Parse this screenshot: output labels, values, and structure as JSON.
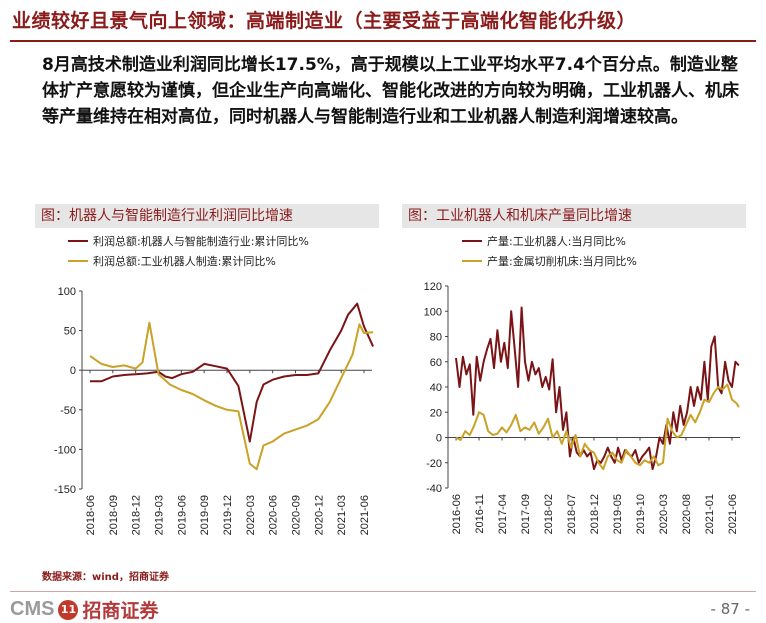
{
  "header": {
    "title": "业绩较好且景气向上领域：高端制造业（主要受益于高端化智能化升级）"
  },
  "body_text": "8月高技术制造业利润同比增长17.5%，高于规模以上工业平均水平7.4个百分点。制造业整体扩产意愿较为谨慎，但企业生产向高端化、智能化改进的方向较为明确，工业机器人、机床等产量维持在相对高位，同时机器人与智能制造行业和工业机器人制造利润增速较高。",
  "footer": {
    "source": "数据来源：wind，招商证券",
    "logo_text": "CMS",
    "logo_badge": "11",
    "logo_cn": "招商证券",
    "page": "- 87 -"
  },
  "colors": {
    "brand": "#8b1a1a",
    "series_dark": "#7b1416",
    "series_gold": "#c9a227"
  },
  "chart_data": [
    {
      "type": "line",
      "title": "图：机器人与智能制造行业利润同比增速",
      "x_ticks": [
        "2018-06",
        "2018-09",
        "2018-12",
        "2019-03",
        "2019-06",
        "2019-09",
        "2019-12",
        "2020-03",
        "2020-06",
        "2020-09",
        "2020-12",
        "2021-03",
        "2021-06"
      ],
      "ylim": [
        -150,
        100
      ],
      "y_ticks": [
        100,
        50,
        0,
        -50,
        -100,
        -150
      ],
      "series": [
        {
          "name": "利润总额:机器人与智能制造行业:累计同比%",
          "color": "#7b1416",
          "x": [
            0,
            0.5,
            1,
            1.5,
            2,
            2.5,
            3,
            3.3,
            3.6,
            4,
            4.5,
            5,
            5.5,
            6,
            6.5,
            7,
            7.3,
            7.6,
            8,
            8.5,
            9,
            9.5,
            10,
            10.5,
            11,
            11.3,
            11.7,
            12,
            12.4
          ],
          "y": [
            -14,
            -14,
            -8,
            -6,
            -5,
            -4,
            -2,
            -8,
            -10,
            -5,
            -2,
            8,
            5,
            2,
            -20,
            -90,
            -40,
            -18,
            -12,
            -8,
            -6,
            -6,
            -4,
            25,
            50,
            70,
            84,
            55,
            30
          ]
        },
        {
          "name": "利润总额:工业机器人制造:累计同比%",
          "color": "#c9a227",
          "x": [
            0,
            0.5,
            1,
            1.5,
            2,
            2.3,
            2.6,
            3,
            3.5,
            4,
            4.5,
            5,
            5.5,
            6,
            6.5,
            7,
            7.3,
            7.6,
            8,
            8.5,
            9,
            9.5,
            10,
            10.5,
            11,
            11.5,
            11.8,
            12,
            12.4
          ],
          "y": [
            18,
            8,
            4,
            6,
            2,
            10,
            60,
            -5,
            -18,
            -25,
            -30,
            -38,
            -45,
            -50,
            -52,
            -118,
            -125,
            -95,
            -90,
            -80,
            -75,
            -70,
            -62,
            -40,
            -10,
            20,
            58,
            47,
            48
          ]
        }
      ]
    },
    {
      "type": "line",
      "title": "图：工业机器人和机床产量同比增速",
      "x_ticks": [
        "2016-06",
        "2016-11",
        "2017-04",
        "2017-09",
        "2018-02",
        "2018-07",
        "2018-12",
        "2019-05",
        "2019-10",
        "2020-03",
        "2020-08",
        "2021-01",
        "2021-06"
      ],
      "ylim": [
        -40,
        120
      ],
      "y_ticks": [
        120,
        100,
        80,
        60,
        40,
        20,
        0,
        -20,
        -40
      ],
      "series": [
        {
          "name": "产量:工业机器人:当月同比%",
          "color": "#7b1416",
          "x": [
            0,
            0.15,
            0.3,
            0.45,
            0.6,
            0.75,
            0.9,
            1.05,
            1.2,
            1.35,
            1.5,
            1.65,
            1.8,
            1.95,
            2.1,
            2.25,
            2.4,
            2.55,
            2.7,
            2.85,
            3,
            3.15,
            3.3,
            3.45,
            3.6,
            3.75,
            3.9,
            4.05,
            4.2,
            4.35,
            4.5,
            4.65,
            4.8,
            4.95,
            5.1,
            5.25,
            5.4,
            5.55,
            5.7,
            5.85,
            6,
            6.15,
            6.3,
            6.45,
            6.6,
            6.75,
            6.9,
            7.05,
            7.2,
            7.35,
            7.5,
            7.65,
            7.8,
            7.95,
            8.1,
            8.25,
            8.4,
            8.55,
            8.7,
            8.85,
            9,
            9.15,
            9.3,
            9.45,
            9.6,
            9.75,
            9.9,
            10.05,
            10.2,
            10.35,
            10.5,
            10.65,
            10.8,
            10.95,
            11.1,
            11.25,
            11.4,
            11.55,
            11.7,
            11.85,
            12,
            12.15,
            12.3
          ],
          "y": [
            63,
            40,
            64,
            50,
            58,
            18,
            64,
            45,
            60,
            70,
            78,
            55,
            85,
            60,
            75,
            55,
            100,
            70,
            40,
            103,
            60,
            45,
            60,
            50,
            55,
            40,
            48,
            38,
            62,
            20,
            40,
            6,
            20,
            -15,
            0,
            -12,
            -15,
            -10,
            -15,
            -12,
            -25,
            -18,
            -20,
            -15,
            -8,
            -15,
            -20,
            -8,
            -18,
            -10,
            -13,
            -15,
            -10,
            -20,
            -15,
            -12,
            -8,
            -25,
            -15,
            0,
            -5,
            10,
            -5,
            20,
            5,
            25,
            10,
            20,
            40,
            25,
            40,
            30,
            60,
            30,
            72,
            80,
            40,
            35,
            60,
            45,
            40,
            60,
            57
          ]
        },
        {
          "name": "产量:金属切削机床:当月同比%",
          "color": "#c9a227",
          "x": [
            0,
            0.2,
            0.4,
            0.6,
            0.8,
            1,
            1.2,
            1.4,
            1.6,
            1.8,
            2,
            2.2,
            2.4,
            2.6,
            2.8,
            3,
            3.2,
            3.4,
            3.6,
            3.8,
            4,
            4.2,
            4.4,
            4.6,
            4.8,
            5,
            5.2,
            5.4,
            5.6,
            5.8,
            6,
            6.2,
            6.4,
            6.6,
            6.8,
            7,
            7.2,
            7.4,
            7.6,
            7.8,
            8,
            8.2,
            8.4,
            8.6,
            8.8,
            9,
            9.2,
            9.4,
            9.6,
            9.8,
            10,
            10.2,
            10.4,
            10.6,
            10.8,
            11,
            11.2,
            11.4,
            11.6,
            11.8,
            12,
            12.2,
            12.3
          ],
          "y": [
            0,
            -2,
            5,
            2,
            10,
            20,
            18,
            5,
            2,
            3,
            8,
            4,
            10,
            18,
            5,
            8,
            6,
            12,
            3,
            8,
            15,
            0,
            5,
            -5,
            5,
            -8,
            2,
            -15,
            -5,
            -10,
            -12,
            -20,
            -25,
            -15,
            -12,
            -18,
            -20,
            -10,
            -15,
            -20,
            -22,
            -18,
            -20,
            -15,
            -22,
            -20,
            15,
            5,
            0,
            2,
            10,
            18,
            12,
            20,
            30,
            28,
            35,
            40,
            38,
            42,
            30,
            27,
            24
          ]
        }
      ]
    }
  ]
}
